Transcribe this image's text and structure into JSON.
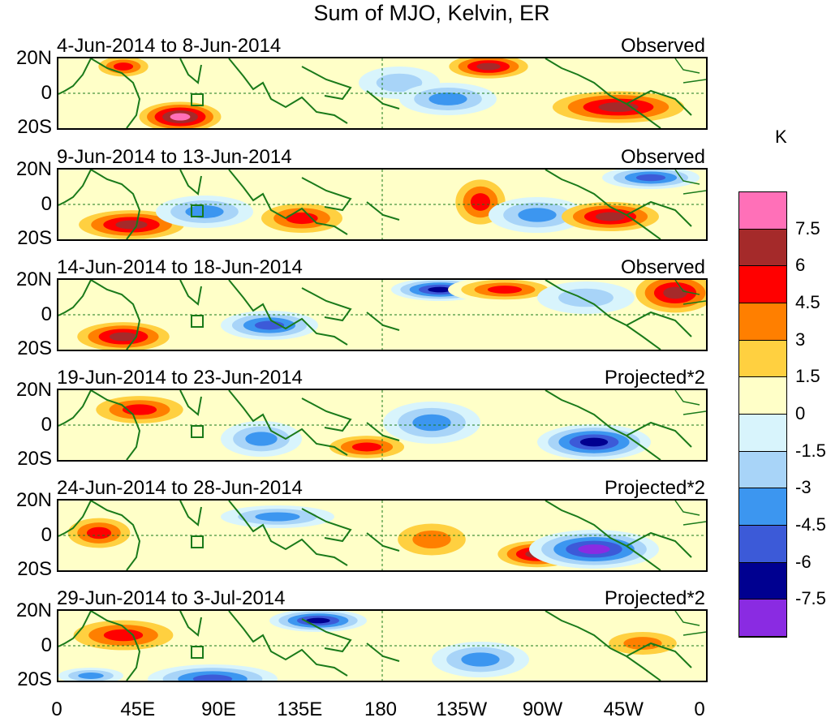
{
  "title": "Sum of MJO, Kelvin, ER",
  "lat_labels": [
    "20N",
    "0",
    "20S"
  ],
  "lon_labels": [
    "0",
    "45E",
    "90E",
    "135E",
    "180",
    "135W",
    "90W",
    "45W",
    "0"
  ],
  "colorbar": {
    "units": "K",
    "levels": [
      "7.5",
      "6",
      "4.5",
      "3",
      "1.5",
      "0",
      "-1.5",
      "-3",
      "-4.5",
      "-6",
      "-7.5"
    ],
    "colors": [
      "#ff70b8",
      "#a52a2a",
      "#ff0000",
      "#ff7f00",
      "#ffd040",
      "#ffffc8",
      "#d8f4fc",
      "#a8d4f8",
      "#3c96f0",
      "#3c5ad8",
      "#000090",
      "#8a2be2"
    ]
  },
  "panels": [
    {
      "date_range": "4-Jun-2014 to 8-Jun-2014",
      "status": "Observed"
    },
    {
      "date_range": "9-Jun-2014 to 13-Jun-2014",
      "status": "Observed"
    },
    {
      "date_range": "14-Jun-2014 to 18-Jun-2014",
      "status": "Observed"
    },
    {
      "date_range": "19-Jun-2014 to 23-Jun-2014",
      "status": "Projected*2"
    },
    {
      "date_range": "24-Jun-2014 to 28-Jun-2014",
      "status": "Projected*2"
    },
    {
      "date_range": "29-Jun-2014 to 3-Jul-2014",
      "status": "Projected*2"
    }
  ]
}
